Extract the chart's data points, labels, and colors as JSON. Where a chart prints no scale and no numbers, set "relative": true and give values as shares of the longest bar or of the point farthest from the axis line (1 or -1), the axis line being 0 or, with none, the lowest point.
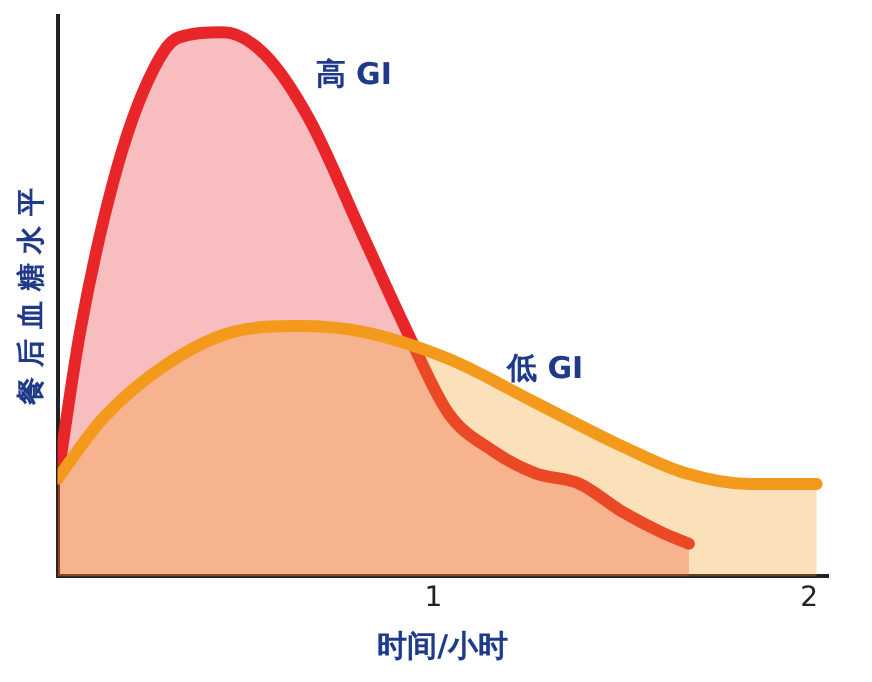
{
  "chart_data": {
    "type": "area",
    "xlabel": "时间/小时",
    "ylabel": "餐 后 血 糖 水 平",
    "relative": true,
    "xlim": [
      0,
      2.05
    ],
    "xticks": [
      1,
      2
    ],
    "grid": false,
    "legend": false,
    "series": [
      {
        "name": "高 GI",
        "color": "#e8262a",
        "x": [
          0,
          0.06,
          0.15,
          0.24,
          0.32,
          0.44,
          0.55,
          0.67,
          0.81,
          0.93,
          1.04,
          1.16,
          1.27,
          1.39,
          1.5,
          1.61,
          1.68
        ],
        "values": [
          0.18,
          0.45,
          0.73,
          0.91,
          0.99,
          1,
          0.96,
          0.84,
          0.63,
          0.45,
          0.3,
          0.23,
          0.19,
          0.17,
          0.12,
          0.08,
          0.06
        ]
      },
      {
        "name": "低 GI",
        "color": "#f39a1c",
        "x": [
          0,
          0.12,
          0.29,
          0.47,
          0.64,
          0.81,
          1.04,
          1.27,
          1.5,
          1.67,
          1.84,
          2.02
        ],
        "values": [
          0.18,
          0.29,
          0.39,
          0.45,
          0.46,
          0.45,
          0.4,
          0.32,
          0.24,
          0.19,
          0.17,
          0.17
        ]
      }
    ]
  }
}
